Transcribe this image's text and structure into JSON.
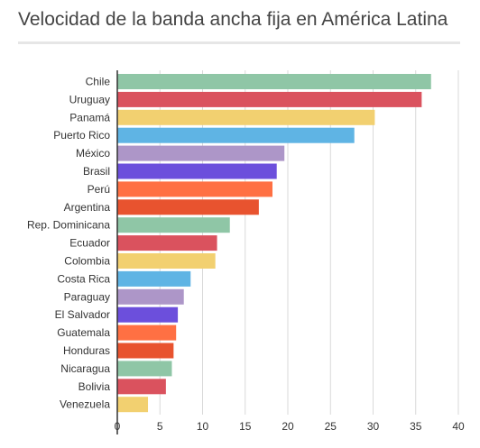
{
  "chart_data": {
    "type": "bar",
    "orientation": "horizontal",
    "title": "Velocidad de la banda ancha fija en América Latina",
    "categories": [
      "Chile",
      "Uruguay",
      "Panamá",
      "Puerto Rico",
      "México",
      "Brasil",
      "Perú",
      "Argentina",
      "Rep. Dominicana",
      "Ecuador",
      "Colombia",
      "Costa Rica",
      "Paraguay",
      "El Salvador",
      "Guatemala",
      "Honduras",
      "Nicaragua",
      "Bolivia",
      "Venezuela"
    ],
    "values": [
      36.8,
      35.7,
      30.2,
      27.8,
      19.6,
      18.7,
      18.2,
      16.6,
      13.2,
      11.7,
      11.5,
      8.6,
      7.8,
      7.1,
      6.9,
      6.6,
      6.4,
      5.7,
      3.6
    ],
    "colors": [
      "#8fc6a6",
      "#da525e",
      "#f2d070",
      "#5fb4e4",
      "#ad96c8",
      "#6c4fdc",
      "#ff7043",
      "#e8532f",
      "#8fc6a6",
      "#da525e",
      "#f2d070",
      "#5fb4e4",
      "#ad96c8",
      "#6c4fdc",
      "#ff7043",
      "#e8532f",
      "#8fc6a6",
      "#da525e",
      "#f2d070"
    ],
    "xlim": [
      0,
      40
    ],
    "xticks": [
      "0",
      "5",
      "10",
      "15",
      "20",
      "25",
      "30",
      "35",
      "40"
    ],
    "grid": true,
    "legend": "none"
  }
}
